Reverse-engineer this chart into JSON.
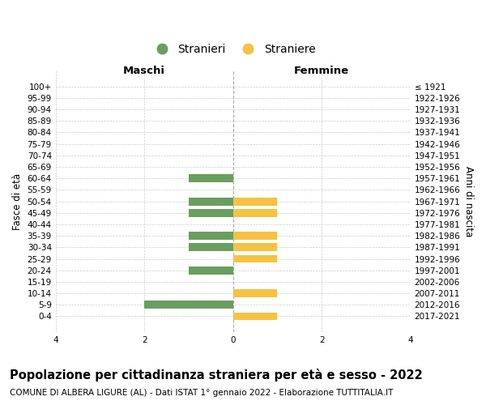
{
  "age_groups": [
    "100+",
    "95-99",
    "90-94",
    "85-89",
    "80-84",
    "75-79",
    "70-74",
    "65-69",
    "60-64",
    "55-59",
    "50-54",
    "45-49",
    "40-44",
    "35-39",
    "30-34",
    "25-29",
    "20-24",
    "15-19",
    "10-14",
    "5-9",
    "0-4"
  ],
  "birth_years": [
    "≤ 1921",
    "1922-1926",
    "1927-1931",
    "1932-1936",
    "1937-1941",
    "1942-1946",
    "1947-1951",
    "1952-1956",
    "1957-1961",
    "1962-1966",
    "1967-1971",
    "1972-1976",
    "1977-1981",
    "1982-1986",
    "1987-1991",
    "1992-1996",
    "1997-2001",
    "2002-2006",
    "2007-2011",
    "2012-2016",
    "2017-2021"
  ],
  "maschi": [
    0,
    0,
    0,
    0,
    0,
    0,
    0,
    0,
    -1,
    0,
    -1,
    -1,
    0,
    -1,
    -1,
    0,
    -1,
    0,
    0,
    -2,
    0
  ],
  "femmine": [
    0,
    0,
    0,
    0,
    0,
    0,
    0,
    0,
    0,
    0,
    1,
    1,
    0,
    1,
    1,
    1,
    0,
    0,
    1,
    0,
    1
  ],
  "maschi_color": "#6a9e5e",
  "femmine_color": "#f5c243",
  "title": "Popolazione per cittadinanza straniera per età e sesso - 2022",
  "subtitle": "COMUNE DI ALBERA LIGURE (AL) - Dati ISTAT 1° gennaio 2022 - Elaborazione TUTTITALIA.IT",
  "ylabel_left": "Fasce di età",
  "ylabel_right": "Anni di nascita",
  "xlim": [
    -4,
    4
  ],
  "xticks": [
    -4,
    -2,
    0,
    2,
    4
  ],
  "xticklabels": [
    "4",
    "2",
    "0",
    "2",
    "4"
  ],
  "legend_stranieri": "Stranieri",
  "legend_straniere": "Straniere",
  "maschi_label": "Maschi",
  "femmine_label": "Femmine",
  "background_color": "#ffffff",
  "grid_color": "#cccccc",
  "bar_height": 0.7,
  "title_fontsize": 10.5,
  "subtitle_fontsize": 7.5,
  "axis_label_fontsize": 8.5,
  "tick_fontsize": 7.5
}
